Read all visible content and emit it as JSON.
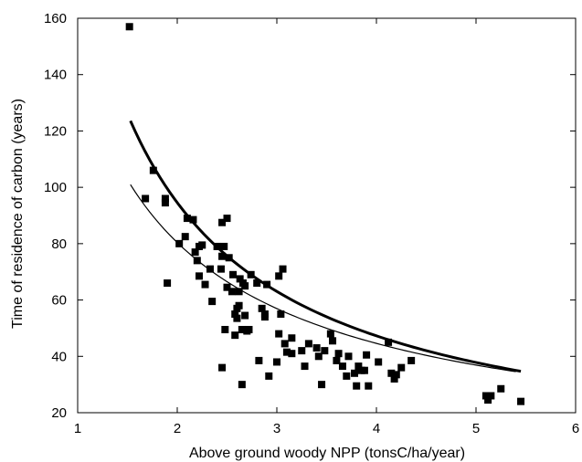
{
  "chart_data": {
    "type": "scatter",
    "title": "",
    "xlabel": "Above ground woody NPP (tonsC/ha/year)",
    "ylabel": "Time of residence of carbon (years)",
    "xlim": [
      1,
      6
    ],
    "ylim": [
      20,
      160
    ],
    "xticks": [
      1,
      2,
      3,
      4,
      5,
      6
    ],
    "yticks": [
      20,
      40,
      60,
      80,
      100,
      120,
      140,
      160
    ],
    "xtick_labels": [
      "1",
      "2",
      "3",
      "4",
      "5",
      "6"
    ],
    "ytick_labels": [
      "20",
      "40",
      "60",
      "80",
      "100",
      "120",
      "140",
      "160"
    ],
    "grid": false,
    "legend": "none",
    "marker": "filled-square",
    "colors": {
      "points": "#000000",
      "curves": "#000000",
      "axes": "#000000"
    },
    "points": [
      [
        1.52,
        157
      ],
      [
        1.68,
        96
      ],
      [
        1.76,
        106
      ],
      [
        1.88,
        96
      ],
      [
        1.88,
        94.5
      ],
      [
        1.9,
        66
      ],
      [
        2.02,
        80
      ],
      [
        2.08,
        82.5
      ],
      [
        2.1,
        89
      ],
      [
        2.16,
        88.5
      ],
      [
        2.18,
        77
      ],
      [
        2.2,
        74
      ],
      [
        2.22,
        79
      ],
      [
        2.22,
        68.5
      ],
      [
        2.25,
        79.5
      ],
      [
        2.28,
        65.5
      ],
      [
        2.33,
        71
      ],
      [
        2.35,
        59.5
      ],
      [
        2.4,
        79
      ],
      [
        2.44,
        71
      ],
      [
        2.45,
        87.5
      ],
      [
        2.45,
        75.5
      ],
      [
        2.45,
        36
      ],
      [
        2.47,
        79
      ],
      [
        2.48,
        49.5
      ],
      [
        2.5,
        89
      ],
      [
        2.5,
        64.5
      ],
      [
        2.52,
        75
      ],
      [
        2.55,
        63
      ],
      [
        2.56,
        69
      ],
      [
        2.58,
        47.5
      ],
      [
        2.58,
        55
      ],
      [
        2.6,
        57
      ],
      [
        2.6,
        53.5
      ],
      [
        2.62,
        58
      ],
      [
        2.62,
        63
      ],
      [
        2.63,
        67.5
      ],
      [
        2.65,
        30
      ],
      [
        2.65,
        49.5
      ],
      [
        2.66,
        66
      ],
      [
        2.68,
        65
      ],
      [
        2.68,
        54.5
      ],
      [
        2.7,
        49
      ],
      [
        2.72,
        49.5
      ],
      [
        2.74,
        69
      ],
      [
        2.8,
        66
      ],
      [
        2.82,
        38.5
      ],
      [
        2.85,
        57
      ],
      [
        2.88,
        55
      ],
      [
        2.88,
        54
      ],
      [
        2.9,
        65.5
      ],
      [
        2.92,
        33
      ],
      [
        3.0,
        38
      ],
      [
        3.02,
        68.5
      ],
      [
        3.02,
        48
      ],
      [
        3.04,
        55
      ],
      [
        3.06,
        71
      ],
      [
        3.08,
        44.5
      ],
      [
        3.1,
        41.5
      ],
      [
        3.15,
        41
      ],
      [
        3.15,
        46.5
      ],
      [
        3.25,
        42
      ],
      [
        3.28,
        36.5
      ],
      [
        3.32,
        44.5
      ],
      [
        3.4,
        43
      ],
      [
        3.42,
        40
      ],
      [
        3.45,
        30
      ],
      [
        3.48,
        42
      ],
      [
        3.54,
        48
      ],
      [
        3.56,
        45.5
      ],
      [
        3.6,
        38.5
      ],
      [
        3.62,
        41
      ],
      [
        3.66,
        36.5
      ],
      [
        3.7,
        33
      ],
      [
        3.72,
        40
      ],
      [
        3.78,
        34
      ],
      [
        3.8,
        29.5
      ],
      [
        3.82,
        36.5
      ],
      [
        3.85,
        35
      ],
      [
        3.88,
        35
      ],
      [
        3.9,
        40.5
      ],
      [
        3.92,
        29.5
      ],
      [
        4.02,
        38
      ],
      [
        4.12,
        45
      ],
      [
        4.15,
        34
      ],
      [
        4.18,
        32
      ],
      [
        4.2,
        33.5
      ],
      [
        4.25,
        36
      ],
      [
        4.35,
        38.5
      ],
      [
        5.1,
        26
      ],
      [
        5.12,
        24.5
      ],
      [
        5.15,
        26
      ],
      [
        5.25,
        28.5
      ],
      [
        5.45,
        24
      ]
    ],
    "series": [
      {
        "style": "thick",
        "formula_a": 189.1,
        "formula_b": -1.0,
        "x_range": [
          1.53,
          5.45
        ]
      },
      {
        "style": "thin",
        "formula_a": 144.9,
        "formula_b": -0.85,
        "x_range": [
          1.53,
          5.4
        ]
      }
    ]
  }
}
